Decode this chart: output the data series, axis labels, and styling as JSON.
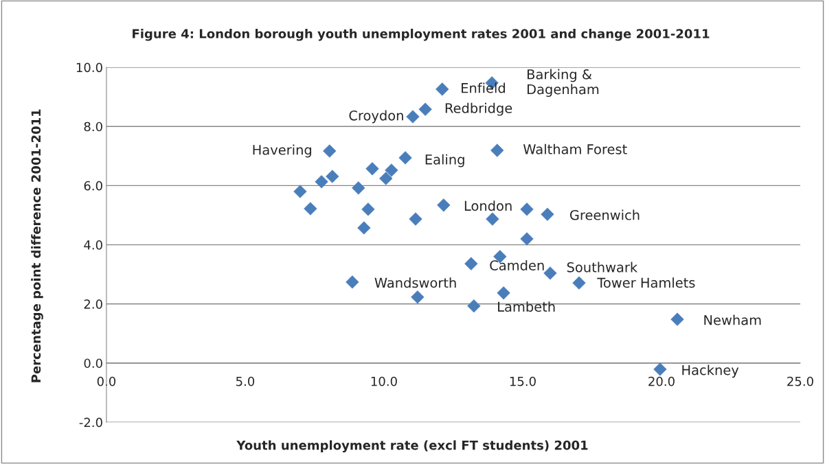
{
  "chart_data": {
    "type": "scatter",
    "title": "Figure 4: London borough youth unemployment rates 2001 and change 2001-2011",
    "xlabel": "Youth unemployment rate (excl FT students) 2001",
    "ylabel": "Percentage point difference 2001-2011",
    "series": [
      {
        "color": "#4a7ebb",
        "x": [
          13.89,
          12.1,
          11.49,
          11.04,
          8.04,
          10.77,
          14.08,
          9.58,
          10.27,
          10.07,
          8.14,
          7.75,
          9.08,
          6.98,
          7.35,
          9.43,
          9.28,
          11.14,
          12.15,
          13.91,
          15.15,
          15.89,
          15.15,
          14.18,
          13.14,
          15.99,
          17.03,
          8.86,
          11.21,
          14.31,
          13.24,
          20.57,
          19.95
        ],
        "values": [
          9.47,
          9.26,
          8.58,
          8.33,
          7.17,
          6.94,
          7.19,
          6.57,
          6.52,
          6.24,
          6.31,
          6.13,
          5.92,
          5.8,
          5.22,
          5.2,
          4.57,
          4.87,
          5.34,
          4.87,
          5.2,
          5.03,
          4.2,
          3.6,
          3.36,
          3.04,
          2.71,
          2.74,
          2.23,
          2.37,
          1.93,
          1.48,
          -0.21
        ]
      }
    ],
    "marker": "diamond",
    "xlim": [
      0,
      25
    ],
    "xticks": [
      {
        "value": 0,
        "label": "0.0"
      },
      {
        "value": 5,
        "label": "5.0"
      },
      {
        "value": 10,
        "label": "10.0"
      },
      {
        "value": 15,
        "label": "15.0"
      },
      {
        "value": 20,
        "label": "20.0"
      },
      {
        "value": 25,
        "label": "25.0"
      }
    ],
    "ylim": [
      -2,
      10
    ],
    "yticks": [
      {
        "value": -2,
        "label": "-2.0"
      },
      {
        "value": 0,
        "label": "0.0"
      },
      {
        "value": 2,
        "label": "2.0"
      },
      {
        "value": 4,
        "label": "4.0"
      },
      {
        "value": 6,
        "label": "6.0"
      },
      {
        "value": 8,
        "label": "8.0"
      },
      {
        "value": 10,
        "label": "10.0"
      }
    ],
    "grid": "y",
    "annotations": [
      {
        "text": "Barking &\nDagenham",
        "x": 13.89,
        "y": 9.47
      },
      {
        "text": "Enfield",
        "x": 12.1,
        "y": 9.26
      },
      {
        "text": "Redbridge",
        "x": 11.49,
        "y": 8.58
      },
      {
        "text": "Croydon",
        "x": 11.04,
        "y": 8.33
      },
      {
        "text": "Havering",
        "x": 8.04,
        "y": 7.17
      },
      {
        "text": "Ealing",
        "x": 10.77,
        "y": 6.94
      },
      {
        "text": "Waltham Forest",
        "x": 14.08,
        "y": 7.19
      },
      {
        "text": "London",
        "x": 12.15,
        "y": 5.34
      },
      {
        "text": "Greenwich",
        "x": 15.89,
        "y": 5.03
      },
      {
        "text": "Camden",
        "x": 13.14,
        "y": 3.36
      },
      {
        "text": "Southwark",
        "x": 15.99,
        "y": 3.04
      },
      {
        "text": "Tower Hamlets",
        "x": 17.03,
        "y": 2.71
      },
      {
        "text": "Wandsworth",
        "x": 8.86,
        "y": 2.74
      },
      {
        "text": "Lambeth",
        "x": 13.24,
        "y": 1.93
      },
      {
        "text": "Newham",
        "x": 20.57,
        "y": 1.48
      },
      {
        "text": "Hackney",
        "x": 19.95,
        "y": -0.21
      }
    ]
  }
}
